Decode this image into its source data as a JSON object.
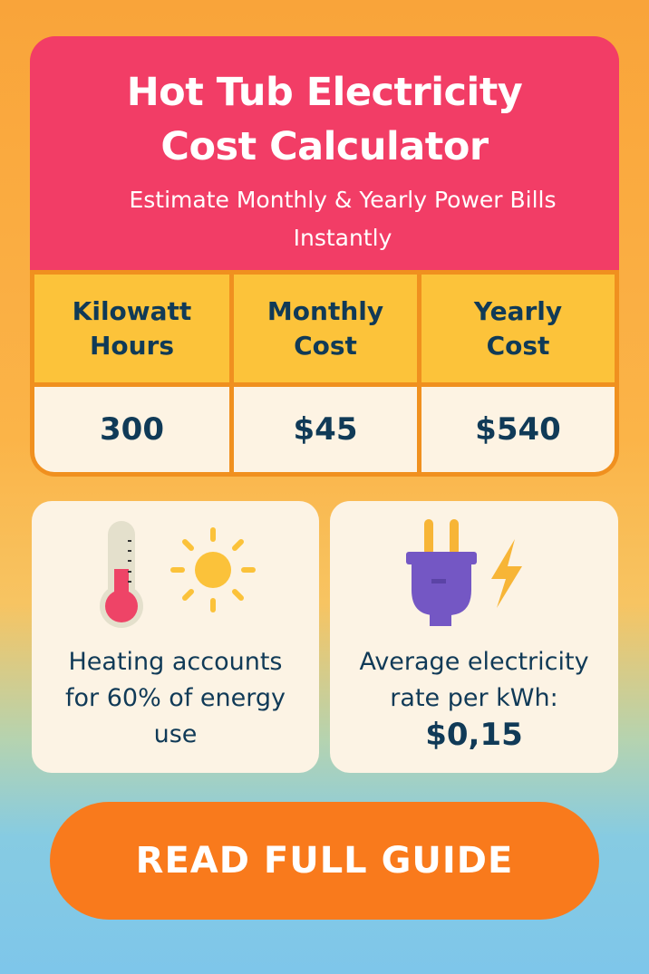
{
  "header": {
    "title_line1": "Hot Tub Electricity",
    "title_line2": "Cost Calculator",
    "subtitle": "Estimate Monthly & Yearly Power Bills Instantly"
  },
  "table": {
    "columns": [
      "Kilowatt Hours",
      "Monthly Cost",
      "Yearly Cost"
    ],
    "values": [
      "300",
      "$45",
      "$540"
    ]
  },
  "info_heating": {
    "icons": [
      "thermometer-icon",
      "sun-icon"
    ],
    "text": "Heating accounts for 60% of energy use"
  },
  "info_rate": {
    "icons": [
      "plug-icon",
      "lightning-icon"
    ],
    "text": "Average electricity rate per kWh:",
    "rate": "$0,15"
  },
  "cta": {
    "label": "READ FULL GUIDE"
  },
  "colors": {
    "header": "#f23d66",
    "table_header": "#fcc33a",
    "border": "#f0901f",
    "text": "#103a57",
    "button": "#f97a1c"
  }
}
